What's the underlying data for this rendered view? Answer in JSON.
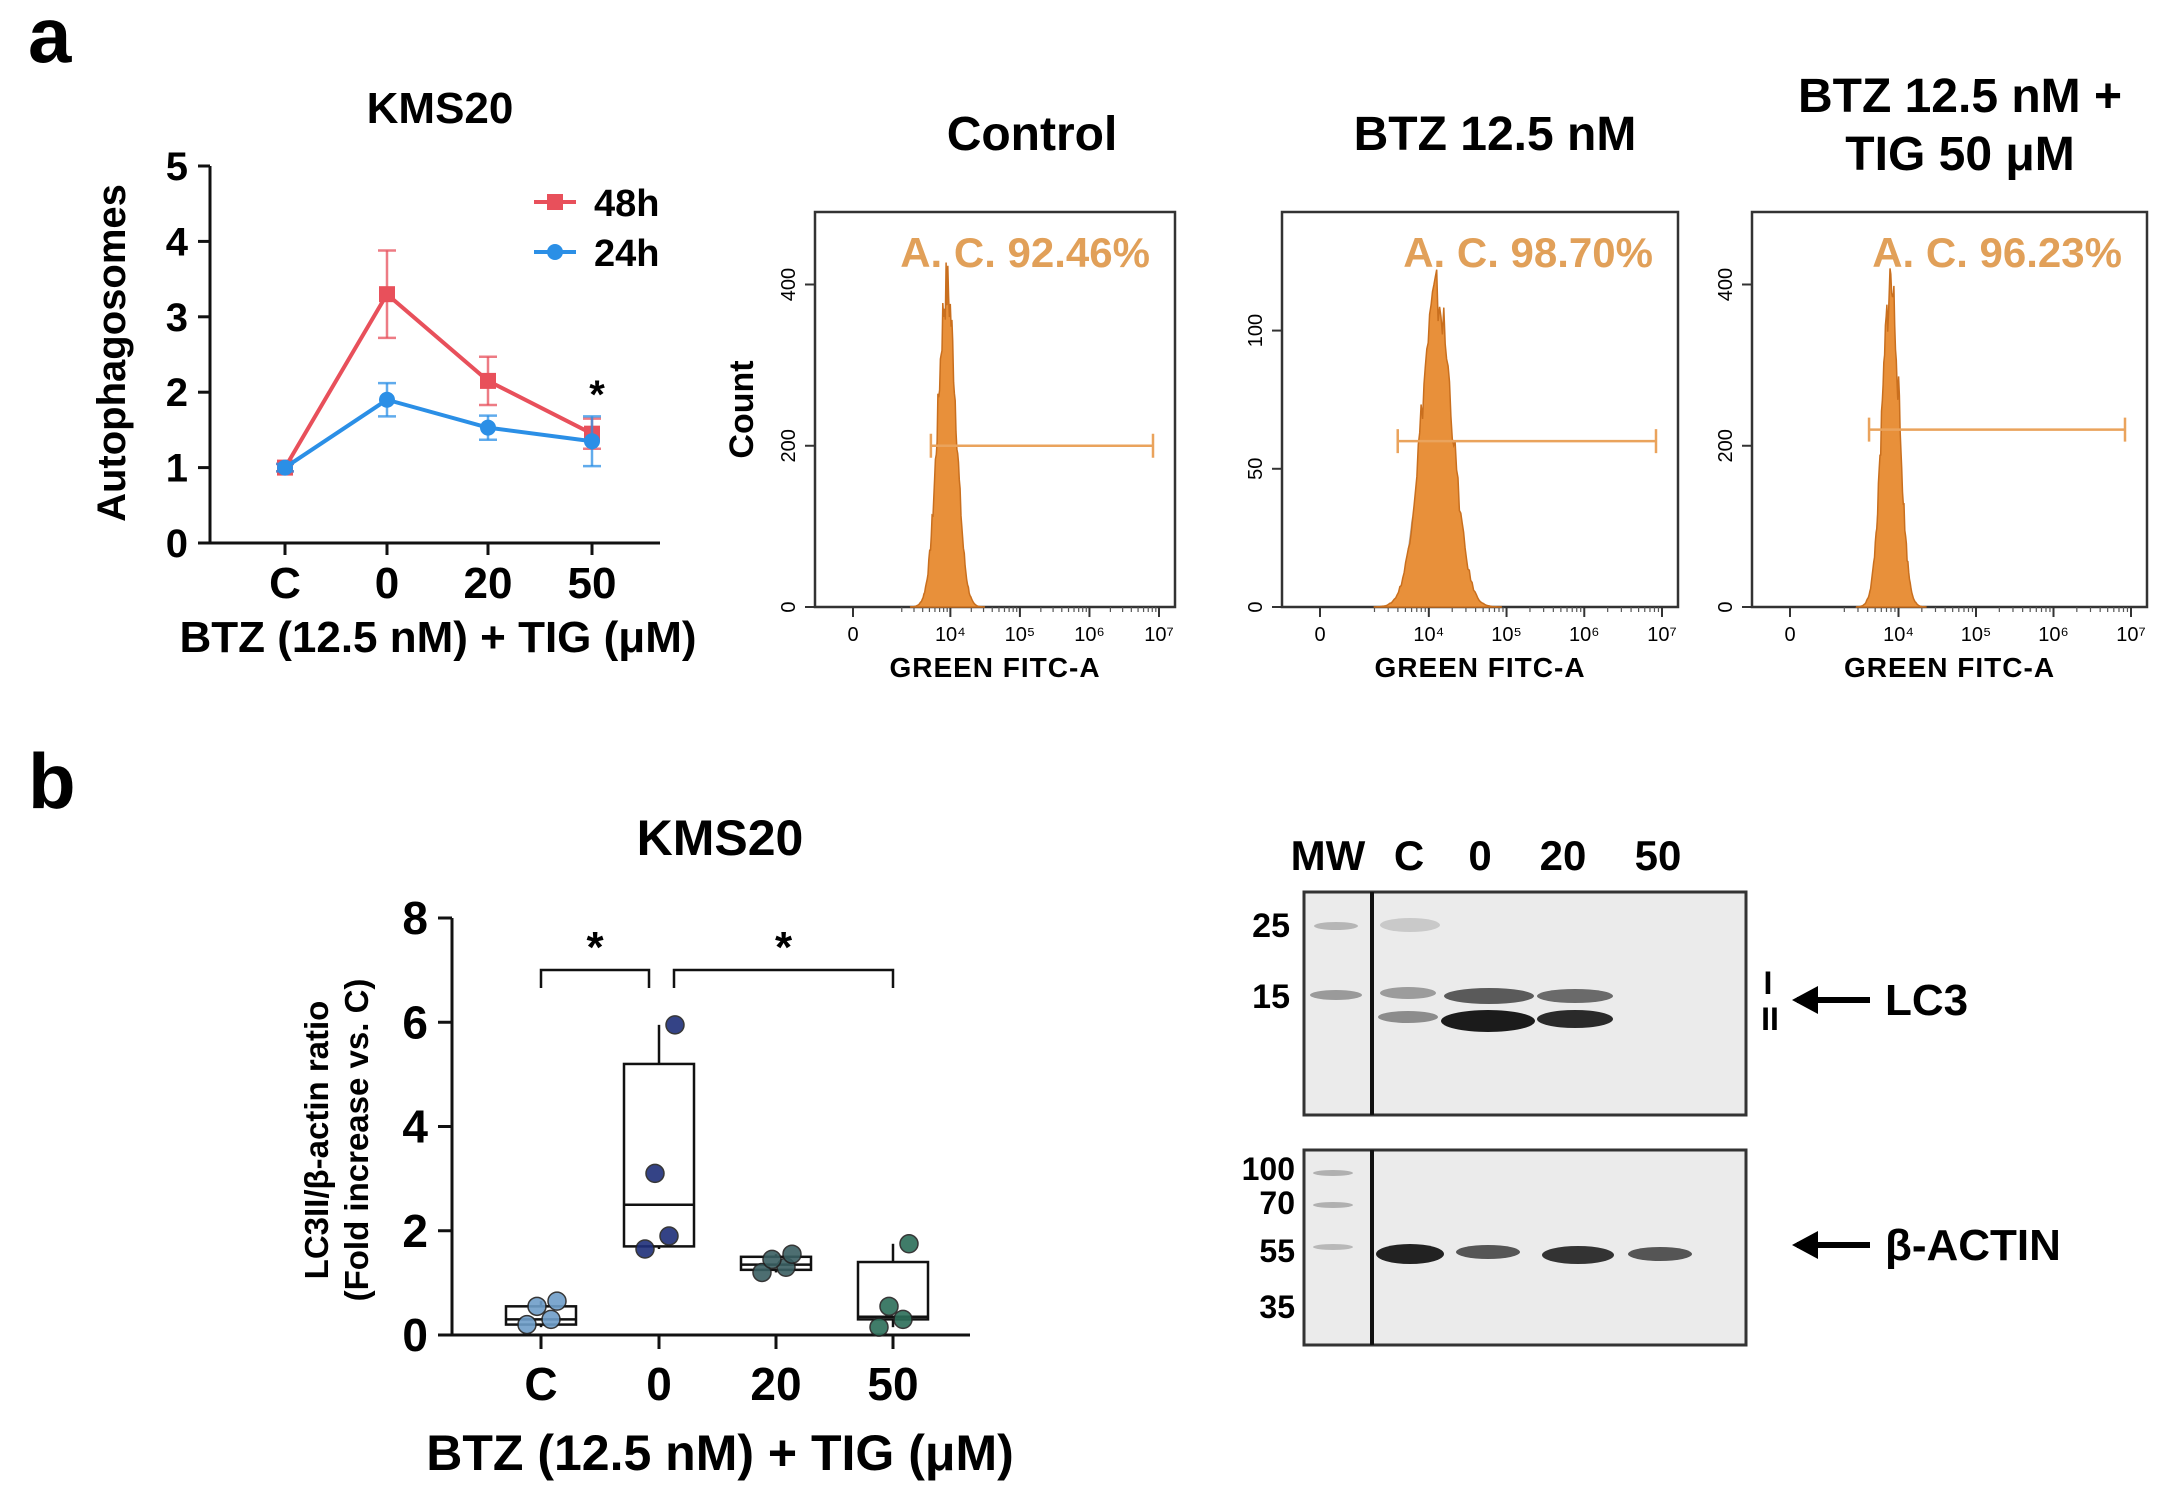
{
  "panel_labels": {
    "a": "a",
    "b": "b"
  },
  "colors": {
    "series_48h": "#e8505b",
    "series_24h": "#2b8fe6",
    "histogram": "#e8903a",
    "gate": "#eaa35c",
    "annotation": "#e1a059",
    "gray_peak": "#a8a8a8"
  },
  "chart_data": [
    {
      "id": "line_autophagosomes",
      "type": "line",
      "title": "KMS20",
      "xlabel": "BTZ (12.5 nM) + TIG (μM)",
      "ylabel": "Autophagosomes",
      "categories": [
        "C",
        "0",
        "20",
        "50"
      ],
      "ylim": [
        0,
        5
      ],
      "yticks": [
        "0",
        "1",
        "2",
        "3",
        "4",
        "5"
      ],
      "series": [
        {
          "name": "48h",
          "values": [
            1.0,
            3.3,
            2.15,
            1.45
          ],
          "errors": [
            0.05,
            0.58,
            0.32,
            0.2
          ]
        },
        {
          "name": "24h",
          "values": [
            1.0,
            1.9,
            1.53,
            1.35
          ],
          "errors": [
            0.05,
            0.22,
            0.16,
            0.33
          ]
        }
      ],
      "annotation": "*"
    },
    {
      "id": "hist_control",
      "type": "histogram",
      "title": "Control",
      "xlabel": "GREEN FITC-A",
      "ylabel": "Count",
      "xticks": [
        "0",
        "10⁴",
        "10⁵",
        "10⁶",
        "10⁷"
      ],
      "yticks": [
        "0",
        "200",
        "400"
      ],
      "ylim": [
        0,
        480
      ],
      "peak_log": 3.95,
      "peak_width": 0.13,
      "peak_height": 395,
      "gate_log": [
        3.72,
        7.0
      ],
      "gate_y": 200,
      "annotation": "A. C. 92.46%"
    },
    {
      "id": "hist_btz",
      "type": "histogram",
      "title": "BTZ 12.5 nM",
      "xlabel": "GREEN FITC-A",
      "ylabel": "",
      "xticks": [
        "0",
        "10⁴",
        "10⁵",
        "10⁶",
        "10⁷"
      ],
      "yticks": [
        "0",
        "50",
        "100"
      ],
      "ylim": [
        0,
        140
      ],
      "peak_log": 4.1,
      "peak_width": 0.2,
      "peak_height": 112,
      "gate_log": [
        3.6,
        7.0
      ],
      "gate_y": 60,
      "annotation": "A. C. 98.70%"
    },
    {
      "id": "hist_combo",
      "type": "histogram",
      "title": "BTZ 12.5 nM +\nTIG 50 μM",
      "title_lines": [
        "BTZ 12.5 nM +",
        "TIG 50 μM"
      ],
      "xlabel": "GREEN FITC-A",
      "ylabel": "",
      "xticks": [
        "0",
        "10⁴",
        "10⁵",
        "10⁶",
        "10⁷"
      ],
      "yticks": [
        "0",
        "200",
        "400"
      ],
      "ylim": [
        0,
        480
      ],
      "peak_log": 3.9,
      "peak_width": 0.11,
      "peak_height": 400,
      "gate_log": [
        3.62,
        7.0
      ],
      "gate_y": 220,
      "annotation": "A. C. 96.23%"
    },
    {
      "id": "box_lc3",
      "type": "box",
      "title": "KMS20",
      "xlabel": "BTZ (12.5 nM) + TIG (μM)",
      "ylabel": "LC3II/β-actin ratio",
      "ylabel2": "(Fold increase vs. C)",
      "categories": [
        "C",
        "0",
        "20",
        "50"
      ],
      "ylim": [
        0,
        8
      ],
      "yticks": [
        "0",
        "2",
        "4",
        "6",
        "8"
      ],
      "boxes": [
        {
          "min": 0.15,
          "q1": 0.2,
          "median": 0.3,
          "q3": 0.55,
          "max": 0.65,
          "points": [
            0.2,
            0.3,
            0.55,
            0.65
          ],
          "color": "#6f9ec9"
        },
        {
          "min": 1.65,
          "q1": 1.7,
          "median": 2.5,
          "q3": 5.2,
          "max": 5.95,
          "points": [
            1.65,
            1.9,
            3.1,
            5.95
          ],
          "color": "#1f2f7a"
        },
        {
          "min": 1.2,
          "q1": 1.25,
          "median": 1.35,
          "q3": 1.5,
          "max": 1.55,
          "points": [
            1.2,
            1.3,
            1.45,
            1.55
          ],
          "color": "#3a5f62"
        },
        {
          "min": 0.15,
          "q1": 0.3,
          "median": 0.35,
          "q3": 1.4,
          "max": 1.75,
          "points": [
            0.15,
            0.3,
            0.55,
            1.75
          ],
          "color": "#2c6e59"
        }
      ],
      "significance": [
        {
          "from": 0,
          "to": 1,
          "label": "*"
        },
        {
          "from": 1,
          "to": 3,
          "label": "*"
        }
      ]
    }
  ],
  "blot": {
    "lane_labels": [
      "MW",
      "C",
      "0",
      "20",
      "50"
    ],
    "top_markers": [
      "25",
      "15"
    ],
    "bottom_markers": [
      "100",
      "70",
      "55",
      "35"
    ],
    "band_forms": [
      "I",
      "II"
    ],
    "lc3_label": "LC3",
    "actin_label": "β-ACTIN"
  }
}
